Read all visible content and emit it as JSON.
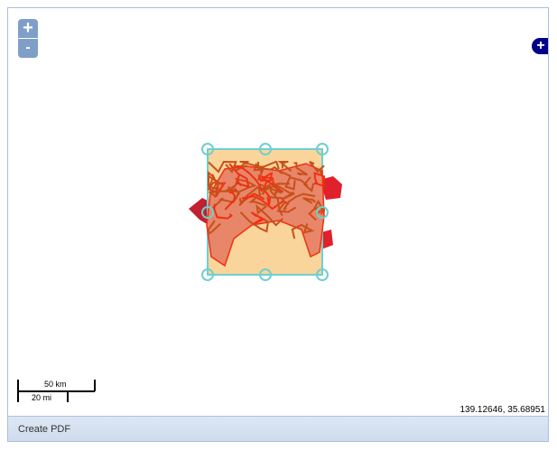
{
  "map": {
    "zoom_in_label": "+",
    "zoom_out_label": "-",
    "layer_switcher_label": "+",
    "scale": {
      "km": "50 km",
      "mi": "20 mi"
    },
    "mouse_position": "139.12646, 35.68951"
  },
  "footer": {
    "create_pdf_label": "Create PDF"
  },
  "colors": {
    "bbox_fill": "#f9d59b",
    "bbox_stroke": "#6fcfcf",
    "region_fill": "#e8866a",
    "roads": "#c8501a",
    "zoom_button": "#7f9fc8",
    "layer_button": "#00008b"
  }
}
